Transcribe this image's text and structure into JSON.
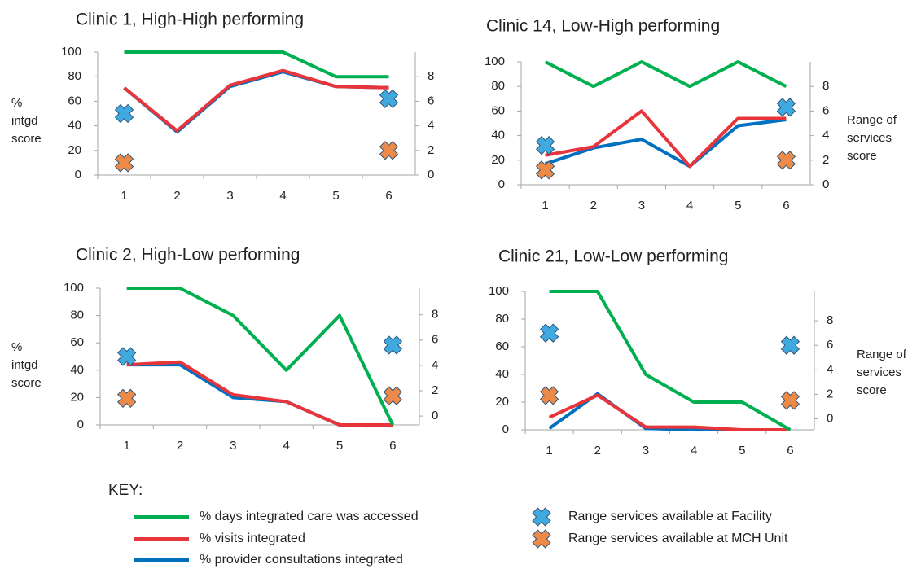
{
  "chart_data": [
    {
      "type": "line",
      "title": "Clinic 1, High-High performing",
      "ylabel": "% intgd score",
      "categories": [
        "1",
        "2",
        "3",
        "4",
        "5",
        "6"
      ],
      "ylim": [
        0,
        100
      ],
      "yticks": [
        0,
        20,
        40,
        60,
        80,
        100
      ],
      "y2lim": [
        0,
        10
      ],
      "y2ticks": [
        0,
        2,
        4,
        6,
        8
      ],
      "series": [
        {
          "values": [
            100,
            100,
            100,
            100,
            80,
            80
          ]
        },
        {
          "values": [
            71,
            36,
            73,
            85,
            72,
            71
          ]
        },
        {
          "values": [
            71,
            35,
            72,
            84,
            72,
            71
          ]
        },
        {
          "axis": "y2",
          "values": [
            5,
            null,
            null,
            null,
            null,
            6.2
          ]
        },
        {
          "axis": "y2",
          "values": [
            1,
            null,
            null,
            null,
            null,
            2
          ]
        }
      ]
    },
    {
      "type": "line",
      "title": "Clinic 14, Low-High performing",
      "y2label": "Range of services score",
      "categories": [
        "1",
        "2",
        "3",
        "4",
        "5",
        "6"
      ],
      "ylim": [
        0,
        100
      ],
      "yticks": [
        0,
        20,
        40,
        60,
        80,
        100
      ],
      "y2lim": [
        0,
        10
      ],
      "y2ticks": [
        0,
        2,
        4,
        6,
        8
      ],
      "series": [
        {
          "values": [
            100,
            80,
            100,
            80,
            100,
            80
          ]
        },
        {
          "values": [
            24,
            31,
            60,
            15,
            54,
            54
          ]
        },
        {
          "values": [
            17,
            30,
            37,
            15,
            48,
            53
          ]
        },
        {
          "axis": "y2",
          "values": [
            3.2,
            null,
            null,
            null,
            null,
            6.3
          ]
        },
        {
          "axis": "y2",
          "values": [
            1.2,
            null,
            null,
            null,
            null,
            2
          ]
        }
      ]
    },
    {
      "type": "line",
      "title": "Clinic 2, High-Low performing",
      "ylabel": "% intgd score",
      "categories": [
        "1",
        "2",
        "3",
        "4",
        "5",
        "6"
      ],
      "ylim": [
        0,
        100
      ],
      "yticks": [
        0,
        20,
        40,
        60,
        80,
        100
      ],
      "y2lim": [
        -0.7,
        10.1
      ],
      "y2ticks": [
        0,
        2,
        4,
        6,
        8
      ],
      "series": [
        {
          "values": [
            100,
            100,
            80,
            40,
            80,
            0
          ]
        },
        {
          "values": [
            44,
            46,
            22,
            17,
            0,
            0
          ]
        },
        {
          "values": [
            44,
            44,
            20,
            17,
            0,
            0
          ]
        },
        {
          "axis": "y2",
          "values": [
            4.7,
            null,
            null,
            null,
            null,
            5.6
          ]
        },
        {
          "axis": "y2",
          "values": [
            1.4,
            null,
            null,
            null,
            null,
            1.6
          ]
        }
      ]
    },
    {
      "type": "line",
      "title": "Clinic 21, Low-Low performing",
      "y2label": "Range of services score",
      "categories": [
        "1",
        "2",
        "3",
        "4",
        "5",
        "6"
      ],
      "ylim": [
        0,
        100
      ],
      "yticks": [
        0,
        20,
        40,
        60,
        80,
        100
      ],
      "y2lim": [
        -0.9,
        10.4
      ],
      "y2ticks": [
        0,
        2,
        4,
        6,
        8
      ],
      "series": [
        {
          "values": [
            100,
            100,
            40,
            20,
            20,
            0
          ]
        },
        {
          "values": [
            9,
            25,
            2,
            2,
            0,
            0
          ]
        },
        {
          "values": [
            1,
            26,
            1,
            0,
            0,
            0
          ]
        },
        {
          "axis": "y2",
          "values": [
            7,
            null,
            null,
            null,
            null,
            6
          ]
        },
        {
          "axis": "y2",
          "values": [
            1.9,
            null,
            null,
            null,
            null,
            1.5
          ]
        }
      ]
    }
  ],
  "key": {
    "title": "KEY:",
    "series": [
      {
        "name": "% days integrated care was accessed",
        "color": "#00b050",
        "style": "line"
      },
      {
        "name": "% visits integrated",
        "color": "#e8343b",
        "style": "line"
      },
      {
        "name": "% provider consultations integrated",
        "color": "#0070c0",
        "style": "line"
      },
      {
        "name": "Range services available at Facility",
        "color": "#3fa9e0",
        "style": "x"
      },
      {
        "name": "Range services available at MCH Unit",
        "color": "#ee8a48",
        "style": "x"
      }
    ]
  }
}
